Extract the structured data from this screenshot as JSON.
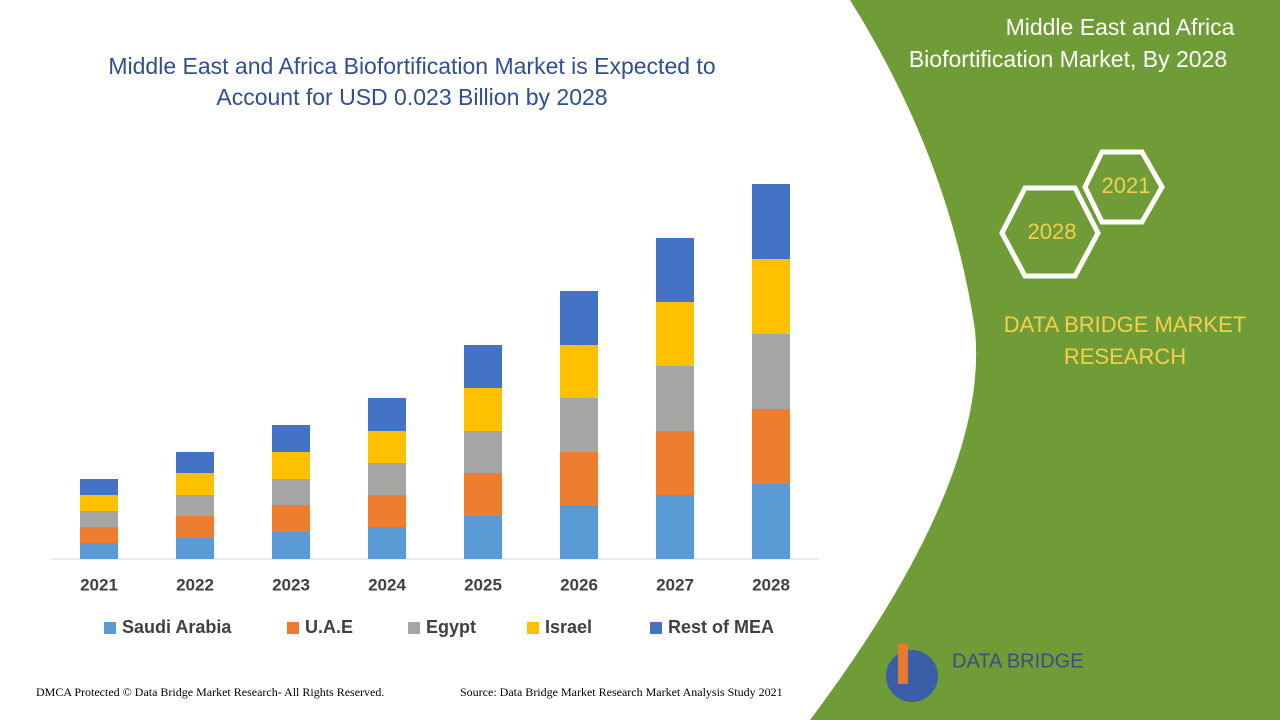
{
  "chart_data": {
    "type": "stacked_bar",
    "title": [
      "Middle East and Africa Biofortification Market is Expected to",
      "Account for USD 0.023 Billion by 2028"
    ],
    "categories": [
      "2021",
      "2022",
      "2023",
      "2024",
      "2025",
      "2026",
      "2027",
      "2028"
    ],
    "series": [
      {
        "name": "Saudi Arabia",
        "color": "#5b9bd5",
        "values": [
          16,
          21,
          27,
          32,
          43,
          54,
          64,
          75
        ]
      },
      {
        "name": "U.A.E",
        "color": "#ed7d31",
        "values": [
          16,
          22,
          27,
          32,
          43,
          53,
          64,
          75
        ]
      },
      {
        "name": "Egypt",
        "color": "#a5a5a5",
        "values": [
          16,
          21,
          26,
          32,
          42,
          54,
          65,
          75
        ]
      },
      {
        "name": "Israel",
        "color": "#ffc000",
        "values": [
          16,
          22,
          27,
          32,
          43,
          53,
          64,
          75
        ]
      },
      {
        "name": "Rest of MEA",
        "color": "#4472c4",
        "values": [
          16,
          21,
          27,
          33,
          43,
          54,
          64,
          75
        ]
      }
    ],
    "ylim": [
      0,
      400
    ]
  },
  "page": {
    "panel_title": [
      "Middle East and Africa",
      "Biofortification Market, By 2028"
    ],
    "hex_start": "2021",
    "hex_end": "2028",
    "brand": [
      "DATA BRIDGE MARKET",
      "RESEARCH"
    ],
    "logo": "DATA BRIDGE",
    "copyright": "DMCA Protected © Data Bridge Market Research- All Rights Reserved.",
    "source": "Source: Data Bridge Market Research Market Analysis Study 2021"
  }
}
